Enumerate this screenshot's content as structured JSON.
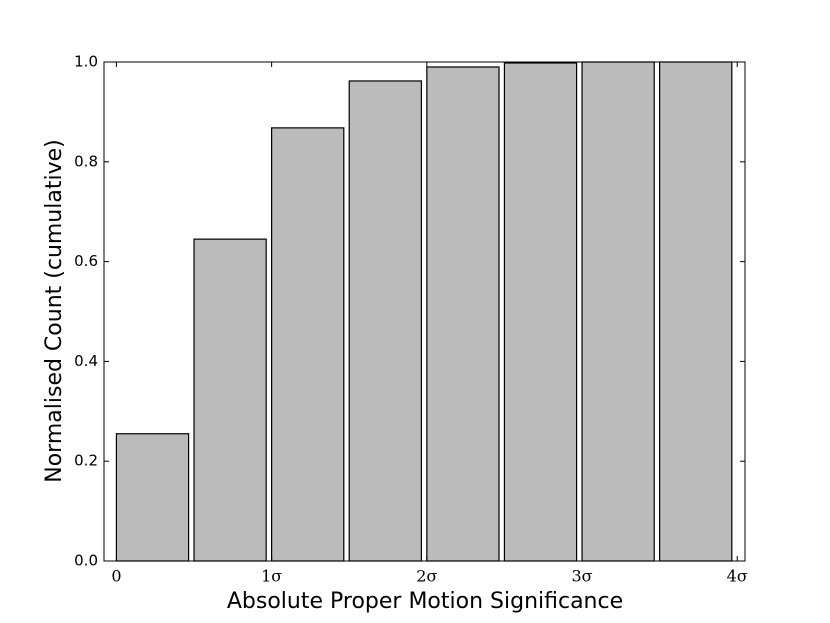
{
  "chart_data": {
    "type": "histogram",
    "xlabel": "Absolute Proper Motion Significance",
    "ylabel": "Normalised Count (cumulative)",
    "bins": [
      0,
      0.5,
      1,
      1.5,
      2,
      2.5,
      3,
      3.5,
      4
    ],
    "values": [
      0.255,
      0.645,
      0.868,
      0.962,
      0.99,
      0.998,
      1.0,
      1.0
    ],
    "color": "#bbbbbb",
    "xlim": [
      -0.08,
      4.05
    ],
    "xticks": [
      0,
      {
        "value": 1,
        "label": "1σ"
      },
      {
        "value": 2,
        "label": "2σ"
      },
      {
        "value": 3,
        "label": "3σ"
      },
      {
        "value": 4,
        "label": "4σ"
      }
    ],
    "ylim": [
      0,
      1
    ],
    "yticks": [
      {
        "value": 0,
        "label": "0.0"
      },
      0.2,
      0.4,
      0.6,
      0.8,
      {
        "value": 1,
        "label": "1.0"
      }
    ]
  }
}
